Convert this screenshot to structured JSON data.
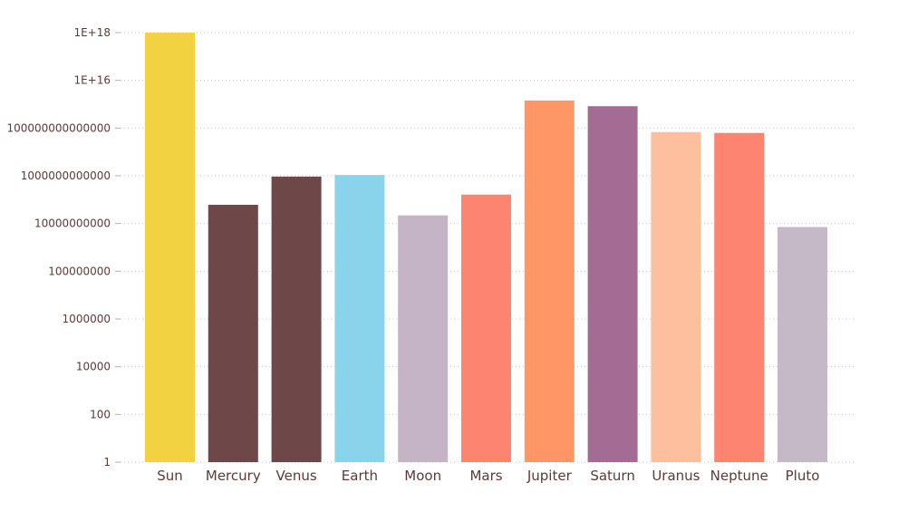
{
  "chart_data": {
    "type": "bar",
    "title": "",
    "xlabel": "",
    "ylabel": "",
    "yscale": "log",
    "ylim": [
      1,
      1e+18
    ],
    "grid": true,
    "legend": "none",
    "yticks": [
      {
        "value": 1,
        "label": "1"
      },
      {
        "value": 100,
        "label": "100"
      },
      {
        "value": 10000,
        "label": "10000"
      },
      {
        "value": 1000000,
        "label": "1000000"
      },
      {
        "value": 100000000,
        "label": "100000000"
      },
      {
        "value": 10000000000,
        "label": "10000000000"
      },
      {
        "value": 1000000000000,
        "label": "1000000000000"
      },
      {
        "value": 100000000000000,
        "label": "100000000000000"
      },
      {
        "value": 10000000000000000,
        "label": "1E+16"
      },
      {
        "value": 1000000000000000000,
        "label": "1E+18"
      }
    ],
    "categories": [
      "Sun",
      "Mercury",
      "Venus",
      "Earth",
      "Moon",
      "Mars",
      "Jupiter",
      "Saturn",
      "Uranus",
      "Neptune",
      "Pluto"
    ],
    "values": [
      1.41e+18,
      60800000000.0,
      928000000000.0,
      1080000000000.0,
      21900000000.0,
      163000000000.0,
      1430000000000000.0,
      827000000000000.0,
      68300000000000.0,
      62500000000000.0,
      7150000000.0
    ],
    "colors": [
      "#F3D242",
      "#6E4749",
      "#6E4749",
      "#8AD4EB",
      "#C5B3C6",
      "#FD8470",
      "#FE9665",
      "#A46B94",
      "#FEBF9F",
      "#FD8470",
      "#C5B9C7"
    ]
  }
}
